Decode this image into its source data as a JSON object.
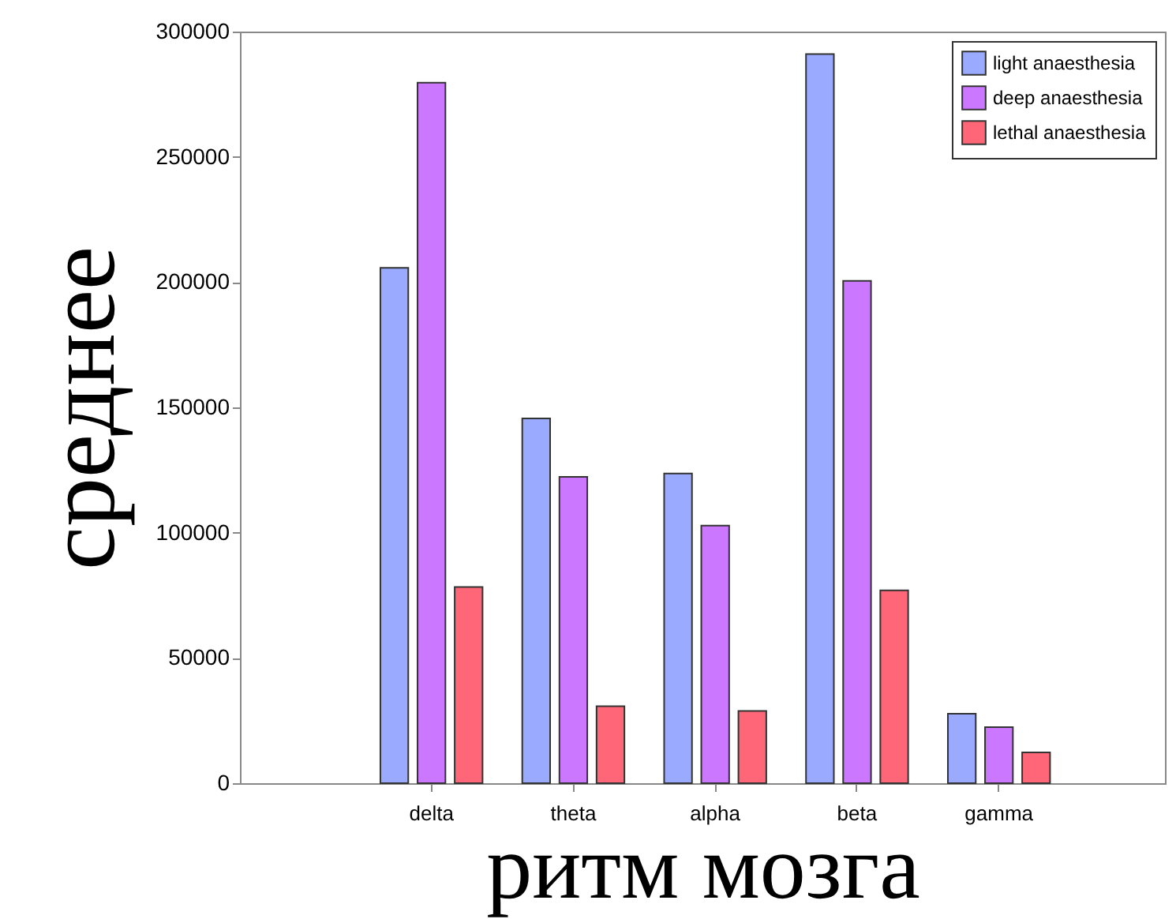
{
  "chart_data": {
    "type": "bar",
    "xlabel": "ритм мозга",
    "ylabel": "среднее",
    "categories": [
      "delta",
      "theta",
      "alpha",
      "beta",
      "gamma"
    ],
    "series": [
      {
        "name": "light anaesthesia",
        "color": "#99aaff",
        "values": [
          205700,
          145600,
          123600,
          291000,
          27700
        ]
      },
      {
        "name": "deep anaesthesia",
        "color": "#cc77ff",
        "values": [
          279600,
          122300,
          102800,
          200500,
          22400
        ]
      },
      {
        "name": "lethal anaesthesia",
        "color": "#ff6677",
        "values": [
          78300,
          30700,
          28800,
          77000,
          12300
        ]
      }
    ],
    "ylim": [
      0,
      300000
    ],
    "yticks": [
      0,
      50000,
      100000,
      150000,
      200000,
      250000,
      300000
    ],
    "grid": false,
    "legend": "top right"
  }
}
